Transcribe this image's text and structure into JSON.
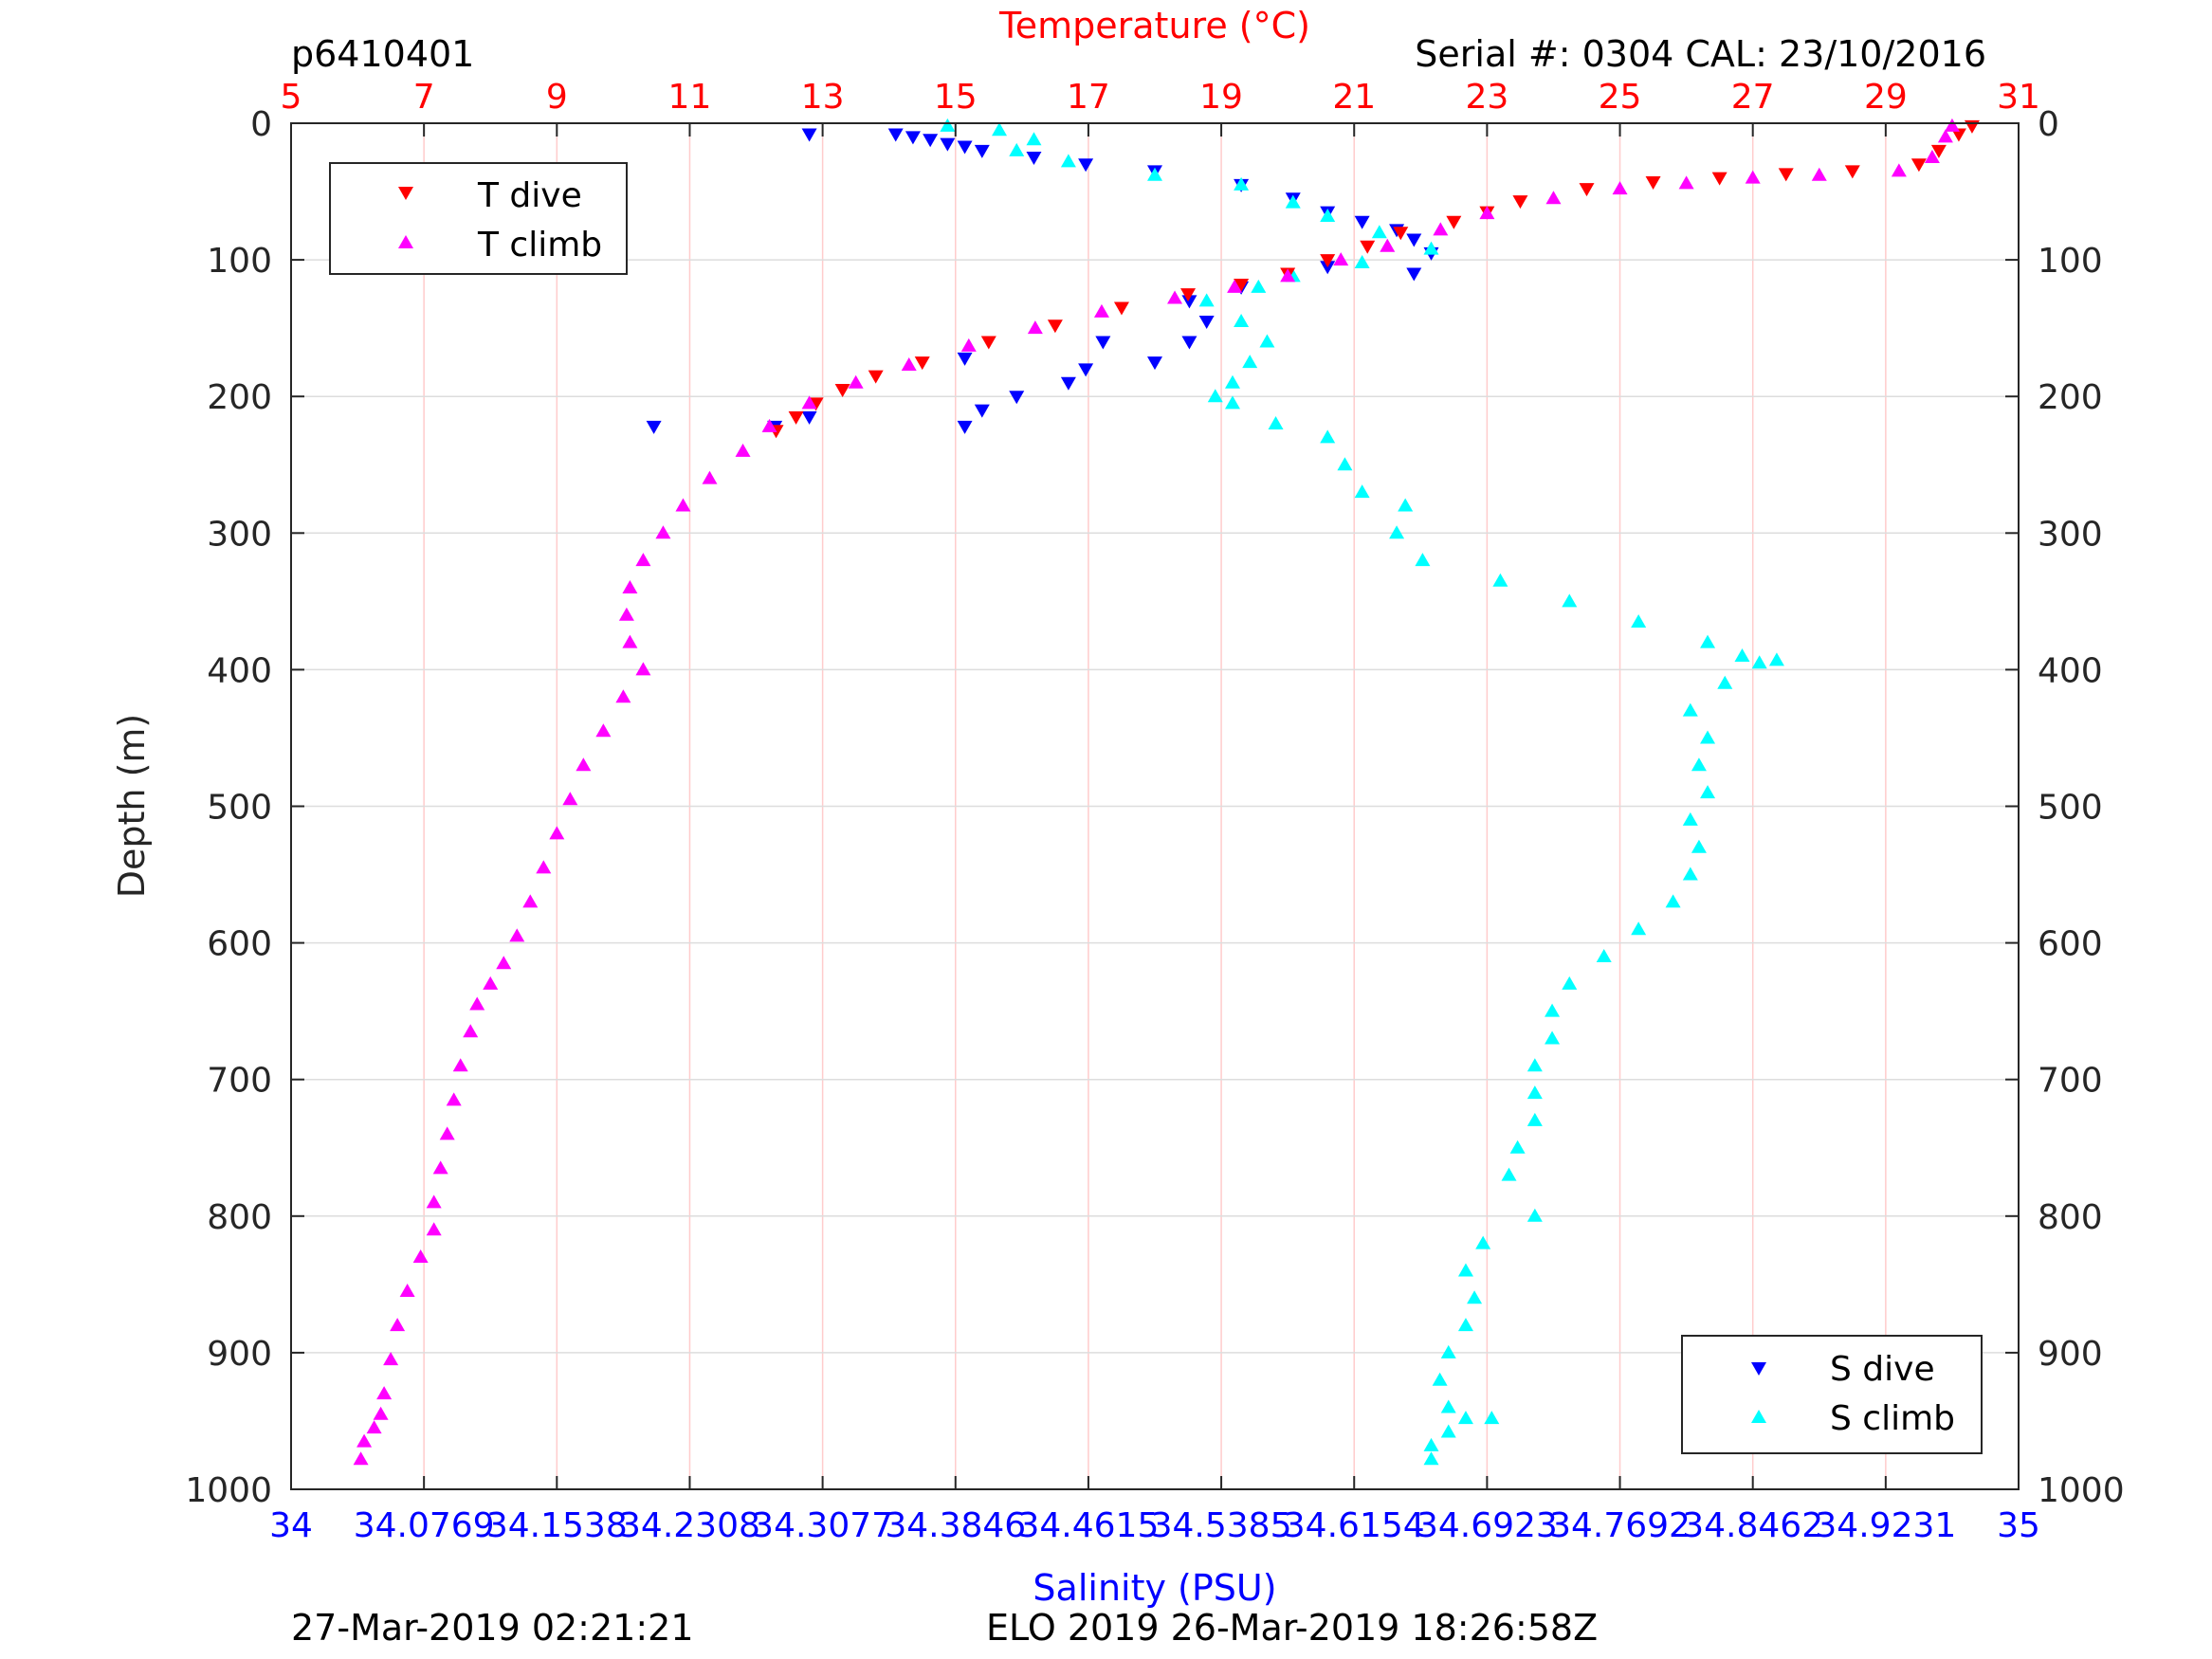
{
  "header": {
    "plot_id": "p6410401",
    "serial_cal": "Serial #: 0304  CAL: 23/10/2016"
  },
  "footer": {
    "timestamp_left": "27-Mar-2019 02:21:21",
    "mission_right": "ELO 2019 26-Mar-2019 18:26:58Z"
  },
  "colors": {
    "t_dive": "#ff0000",
    "t_climb": "#ff00ff",
    "s_dive": "#0000ff",
    "s_climb": "#00ffff",
    "temperature_axis": "#ff0000",
    "salinity_axis": "#0000ff",
    "grid_vertical": "#ffcccc",
    "grid_horizontal": "#dddddd"
  },
  "chart_data": {
    "type": "scatter",
    "title": "",
    "ylabel": "Depth (m)",
    "ylim": [
      0,
      1000
    ],
    "y_reversed": true,
    "y_ticks": [
      "0",
      "100",
      "200",
      "300",
      "400",
      "500",
      "600",
      "700",
      "800",
      "900",
      "1000"
    ],
    "top_axis": {
      "label": "Temperature (°C)",
      "range": [
        5,
        31
      ],
      "ticks": [
        "5",
        "7",
        "9",
        "11",
        "13",
        "15",
        "17",
        "19",
        "21",
        "23",
        "25",
        "27",
        "29",
        "31"
      ]
    },
    "bottom_axis": {
      "label": "Salinity (PSU)",
      "range": [
        34,
        35
      ],
      "ticks": [
        "34",
        "34.0769",
        "34.1538",
        "34.2308",
        "34.3077",
        "34.3846",
        "34.4615",
        "34.5385",
        "34.6154",
        "34.6923",
        "34.7692",
        "34.8462",
        "34.9231",
        "35"
      ]
    },
    "legend_temperature": {
      "position": "top-left",
      "entries": [
        "T dive",
        "T climb"
      ]
    },
    "legend_salinity": {
      "position": "bottom-right",
      "entries": [
        "S dive",
        "S climb"
      ]
    },
    "grid": true,
    "series": [
      {
        "name": "T dive",
        "axis": "temperature",
        "marker": "down-triangle",
        "points": [
          [
            30.3,
            2
          ],
          [
            30.1,
            8
          ],
          [
            29.8,
            20
          ],
          [
            29.5,
            30
          ],
          [
            28.5,
            35
          ],
          [
            27.5,
            37
          ],
          [
            26.5,
            40
          ],
          [
            25.5,
            43
          ],
          [
            24.5,
            48
          ],
          [
            23.5,
            57
          ],
          [
            23.0,
            65
          ],
          [
            22.5,
            72
          ],
          [
            21.7,
            80
          ],
          [
            21.2,
            90
          ],
          [
            20.6,
            100
          ],
          [
            20.0,
            110
          ],
          [
            19.3,
            118
          ],
          [
            18.5,
            125
          ],
          [
            17.5,
            135
          ],
          [
            16.5,
            148
          ],
          [
            15.5,
            160
          ],
          [
            14.5,
            175
          ],
          [
            13.8,
            185
          ],
          [
            13.3,
            195
          ],
          [
            12.9,
            205
          ],
          [
            12.6,
            215
          ],
          [
            12.3,
            225
          ]
        ]
      },
      {
        "name": "T climb",
        "axis": "temperature",
        "marker": "up-triangle",
        "points": [
          [
            30.0,
            2
          ],
          [
            29.9,
            10
          ],
          [
            29.7,
            25
          ],
          [
            29.2,
            35
          ],
          [
            28.0,
            38
          ],
          [
            27.0,
            40
          ],
          [
            26.0,
            44
          ],
          [
            25.0,
            48
          ],
          [
            24.0,
            55
          ],
          [
            23.0,
            66
          ],
          [
            22.3,
            78
          ],
          [
            21.5,
            90
          ],
          [
            20.8,
            100
          ],
          [
            20.0,
            112
          ],
          [
            19.2,
            120
          ],
          [
            18.3,
            128
          ],
          [
            17.2,
            138
          ],
          [
            16.2,
            150
          ],
          [
            15.2,
            163
          ],
          [
            14.3,
            177
          ],
          [
            13.5,
            190
          ],
          [
            12.8,
            205
          ],
          [
            12.2,
            222
          ],
          [
            11.8,
            240
          ],
          [
            11.3,
            260
          ],
          [
            10.9,
            280
          ],
          [
            10.6,
            300
          ],
          [
            10.3,
            320
          ],
          [
            10.1,
            340
          ],
          [
            10.05,
            360
          ],
          [
            10.1,
            380
          ],
          [
            10.3,
            400
          ],
          [
            10.0,
            420
          ],
          [
            9.7,
            445
          ],
          [
            9.4,
            470
          ],
          [
            9.2,
            495
          ],
          [
            9.0,
            520
          ],
          [
            8.8,
            545
          ],
          [
            8.6,
            570
          ],
          [
            8.4,
            595
          ],
          [
            8.2,
            615
          ],
          [
            8.0,
            630
          ],
          [
            7.8,
            645
          ],
          [
            7.7,
            665
          ],
          [
            7.55,
            690
          ],
          [
            7.45,
            715
          ],
          [
            7.35,
            740
          ],
          [
            7.25,
            765
          ],
          [
            7.15,
            790
          ],
          [
            7.15,
            810
          ],
          [
            6.95,
            830
          ],
          [
            6.75,
            855
          ],
          [
            6.6,
            880
          ],
          [
            6.5,
            905
          ],
          [
            6.4,
            930
          ],
          [
            6.35,
            945
          ],
          [
            6.25,
            955
          ],
          [
            6.1,
            965
          ],
          [
            6.05,
            978
          ]
        ]
      },
      {
        "name": "S dive",
        "axis": "salinity",
        "marker": "down-triangle",
        "points": [
          [
            34.3,
            8
          ],
          [
            34.35,
            8
          ],
          [
            34.36,
            10
          ],
          [
            34.37,
            12
          ],
          [
            34.38,
            15
          ],
          [
            34.39,
            17
          ],
          [
            34.4,
            20
          ],
          [
            34.43,
            25
          ],
          [
            34.46,
            30
          ],
          [
            34.5,
            35
          ],
          [
            34.55,
            45
          ],
          [
            34.58,
            55
          ],
          [
            34.6,
            65
          ],
          [
            34.62,
            72
          ],
          [
            34.64,
            78
          ],
          [
            34.65,
            85
          ],
          [
            34.66,
            95
          ],
          [
            34.65,
            110
          ],
          [
            34.6,
            105
          ],
          [
            34.55,
            120
          ],
          [
            34.52,
            130
          ],
          [
            34.53,
            145
          ],
          [
            34.52,
            160
          ],
          [
            34.5,
            175
          ],
          [
            34.45,
            190
          ],
          [
            34.42,
            200
          ],
          [
            34.4,
            210
          ],
          [
            34.39,
            222
          ],
          [
            34.21,
            222
          ],
          [
            34.28,
            222
          ],
          [
            34.3,
            215
          ],
          [
            34.46,
            180
          ],
          [
            34.47,
            160
          ],
          [
            34.39,
            172
          ]
        ]
      },
      {
        "name": "S climb",
        "axis": "salinity",
        "marker": "up-triangle",
        "points": [
          [
            34.38,
            2
          ],
          [
            34.41,
            5
          ],
          [
            34.43,
            12
          ],
          [
            34.42,
            20
          ],
          [
            34.45,
            28
          ],
          [
            34.5,
            38
          ],
          [
            34.55,
            45
          ],
          [
            34.58,
            58
          ],
          [
            34.6,
            68
          ],
          [
            34.63,
            80
          ],
          [
            34.66,
            92
          ],
          [
            34.62,
            102
          ],
          [
            34.58,
            112
          ],
          [
            34.56,
            120
          ],
          [
            34.53,
            130
          ],
          [
            34.55,
            145
          ],
          [
            34.565,
            160
          ],
          [
            34.555,
            175
          ],
          [
            34.545,
            190
          ],
          [
            34.535,
            200
          ],
          [
            34.545,
            205
          ],
          [
            34.57,
            220
          ],
          [
            34.6,
            230
          ],
          [
            34.61,
            250
          ],
          [
            34.62,
            270
          ],
          [
            34.645,
            280
          ],
          [
            34.64,
            300
          ],
          [
            34.655,
            320
          ],
          [
            34.7,
            335
          ],
          [
            34.74,
            350
          ],
          [
            34.78,
            365
          ],
          [
            34.82,
            380
          ],
          [
            34.84,
            390
          ],
          [
            34.85,
            395
          ],
          [
            34.86,
            393
          ],
          [
            34.83,
            410
          ],
          [
            34.81,
            430
          ],
          [
            34.82,
            450
          ],
          [
            34.815,
            470
          ],
          [
            34.82,
            490
          ],
          [
            34.81,
            510
          ],
          [
            34.815,
            530
          ],
          [
            34.81,
            550
          ],
          [
            34.8,
            570
          ],
          [
            34.78,
            590
          ],
          [
            34.76,
            610
          ],
          [
            34.74,
            630
          ],
          [
            34.73,
            650
          ],
          [
            34.73,
            670
          ],
          [
            34.72,
            690
          ],
          [
            34.72,
            710
          ],
          [
            34.72,
            730
          ],
          [
            34.71,
            750
          ],
          [
            34.705,
            770
          ],
          [
            34.72,
            800
          ],
          [
            34.69,
            820
          ],
          [
            34.68,
            840
          ],
          [
            34.685,
            860
          ],
          [
            34.68,
            880
          ],
          [
            34.67,
            900
          ],
          [
            34.665,
            920
          ],
          [
            34.67,
            940
          ],
          [
            34.68,
            948
          ],
          [
            34.695,
            948
          ],
          [
            34.67,
            958
          ],
          [
            34.66,
            968
          ],
          [
            34.66,
            978
          ]
        ]
      }
    ]
  }
}
